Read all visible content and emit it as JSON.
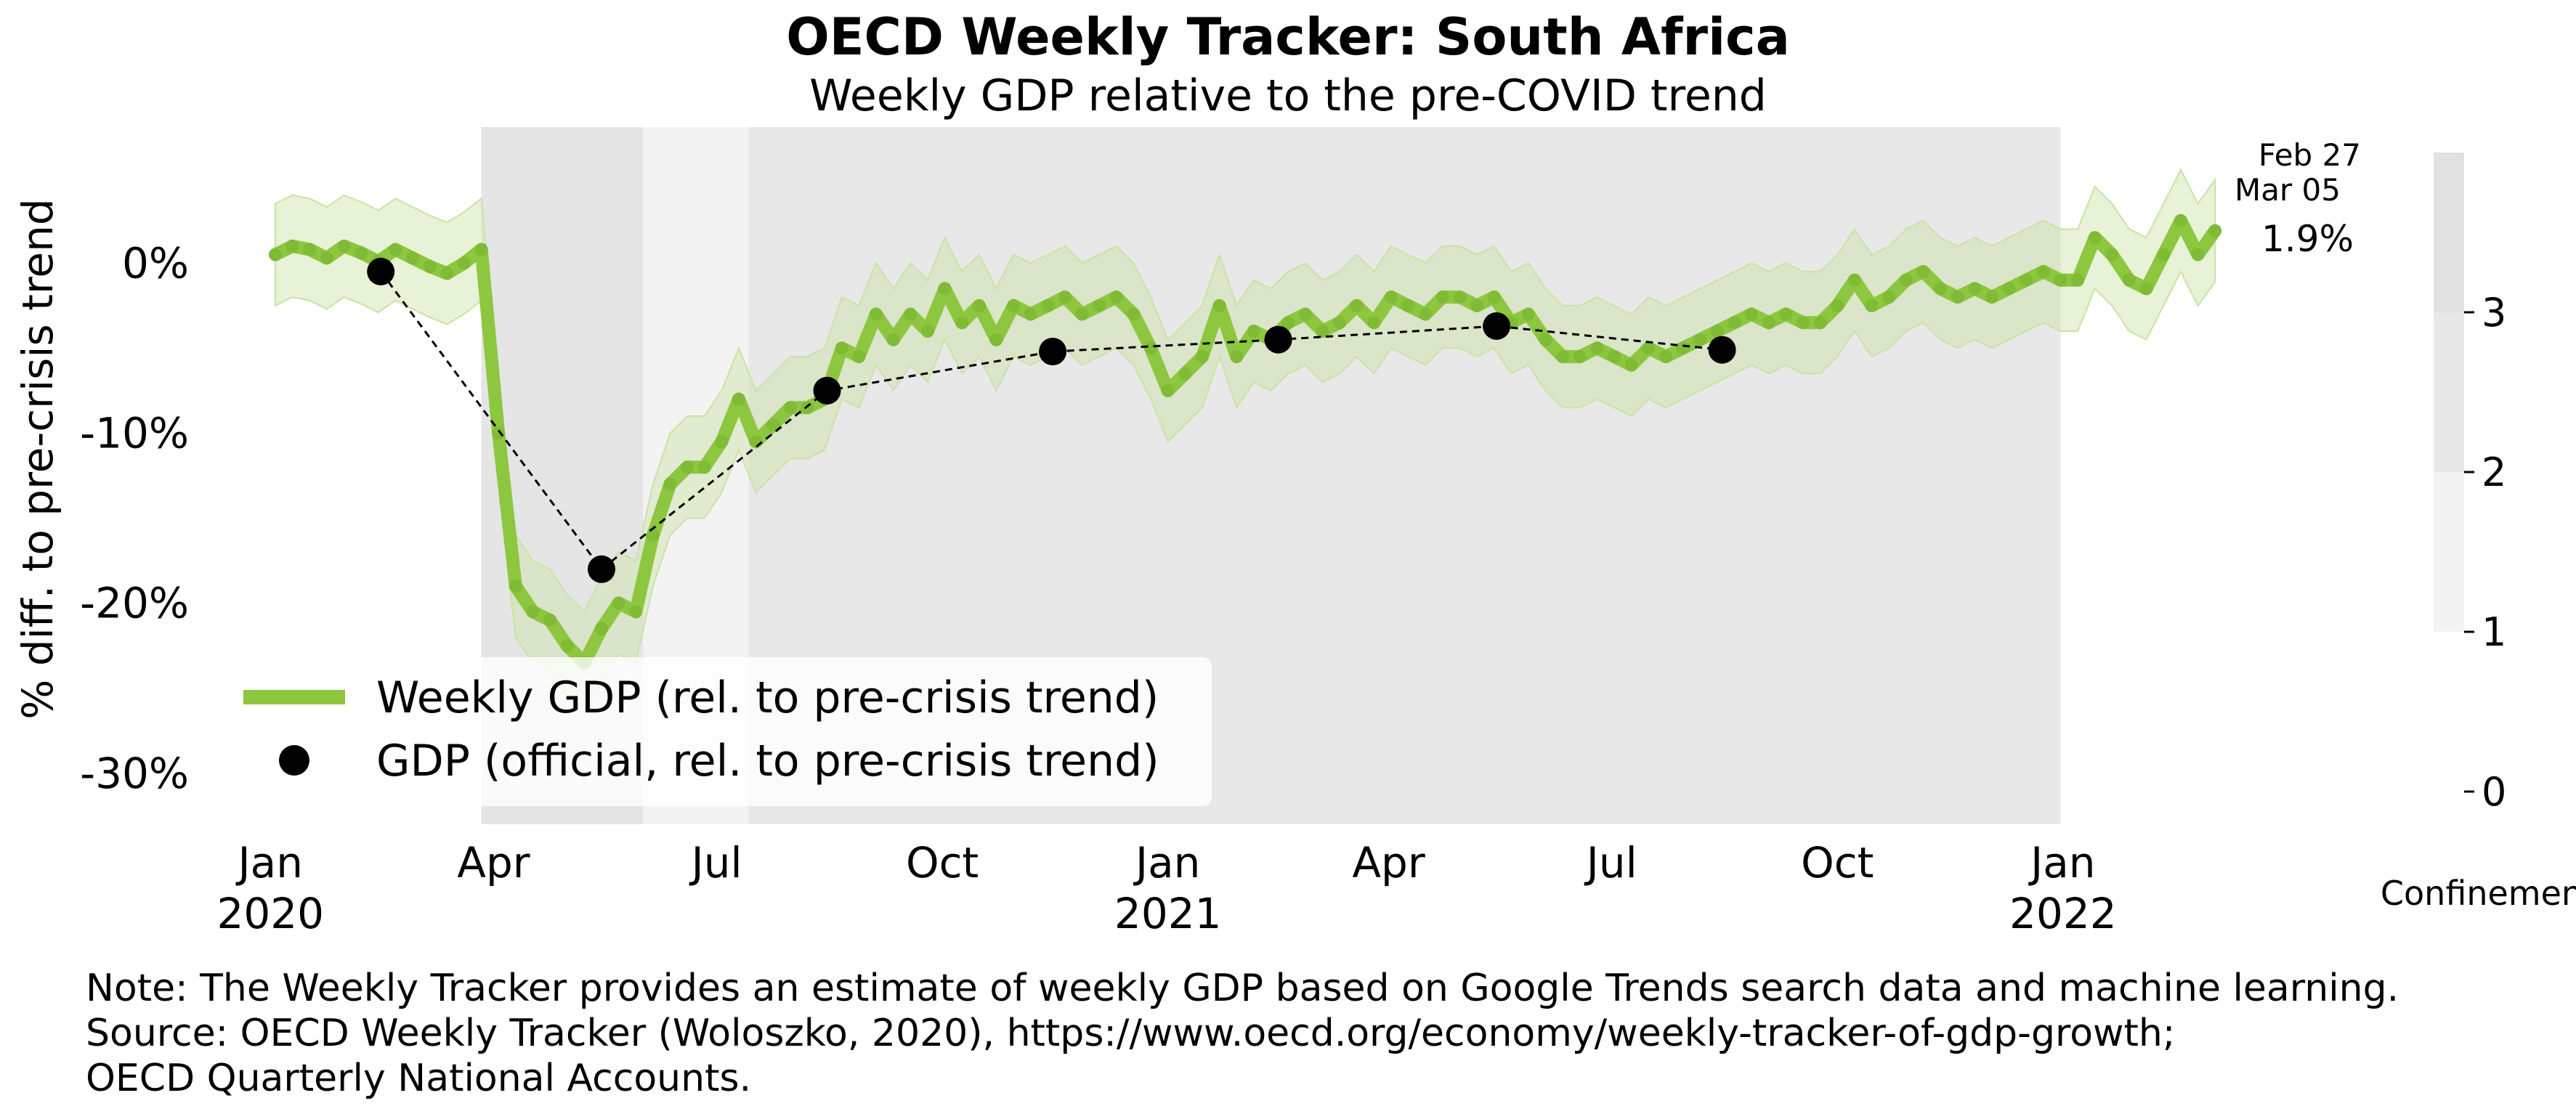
{
  "chart_data": {
    "type": "line",
    "title": "OECD Weekly Tracker: South Africa",
    "subtitle": "Weekly GDP relative to the pre-COVID trend",
    "ylabel": "% diff. to pre-crisis trend",
    "ylim": [
      -33,
      8
    ],
    "yticks": [
      {
        "value": 0,
        "label": "0%"
      },
      {
        "value": -10,
        "label": "-10%"
      },
      {
        "value": -20,
        "label": "-20%"
      },
      {
        "value": -30,
        "label": "-30%"
      }
    ],
    "xticks": [
      {
        "date": "2020-01-01",
        "line1": "Jan",
        "line2": "2020"
      },
      {
        "date": "2020-04-01",
        "line1": "Apr",
        "line2": ""
      },
      {
        "date": "2020-07-01",
        "line1": "Jul",
        "line2": ""
      },
      {
        "date": "2020-10-01",
        "line1": "Oct",
        "line2": ""
      },
      {
        "date": "2021-01-01",
        "line1": "Jan",
        "line2": "2021"
      },
      {
        "date": "2021-04-01",
        "line1": "Apr",
        "line2": ""
      },
      {
        "date": "2021-07-01",
        "line1": "Jul",
        "line2": ""
      },
      {
        "date": "2021-10-01",
        "line1": "Oct",
        "line2": ""
      },
      {
        "date": "2022-01-01",
        "line1": "Jan",
        "line2": "2022"
      }
    ],
    "xlim": [
      "2019-12-18",
      "2022-03-25"
    ],
    "colors": {
      "weekly": "#8dc63f",
      "band": "#c9e3a5",
      "official": "#000000"
    },
    "confinement": {
      "label": "Confinement",
      "ticks": [
        0,
        1,
        2,
        3
      ],
      "periods": [
        {
          "start": "2020-03-27",
          "end": "2020-06-01",
          "level": 3
        },
        {
          "start": "2020-06-01",
          "end": "2020-07-14",
          "level": 1
        },
        {
          "start": "2020-07-14",
          "end": "2021-12-31",
          "level": 2.6
        }
      ]
    },
    "series": [
      {
        "name": "Weekly GDP (rel. to pre-crisis trend)",
        "band_width": 3,
        "points": [
          [
            "2020-01-03",
            0.5
          ],
          [
            "2020-01-10",
            1.0
          ],
          [
            "2020-01-17",
            0.8
          ],
          [
            "2020-01-24",
            0.3
          ],
          [
            "2020-01-31",
            1.0
          ],
          [
            "2020-02-07",
            0.6
          ],
          [
            "2020-02-14",
            0.1
          ],
          [
            "2020-02-21",
            0.8
          ],
          [
            "2020-02-28",
            0.3
          ],
          [
            "2020-03-06",
            -0.2
          ],
          [
            "2020-03-13",
            -0.6
          ],
          [
            "2020-03-20",
            0.0
          ],
          [
            "2020-03-27",
            0.8
          ],
          [
            "2020-04-03",
            -10.0
          ],
          [
            "2020-04-10",
            -19.0
          ],
          [
            "2020-04-17",
            -20.5
          ],
          [
            "2020-04-24",
            -21.0
          ],
          [
            "2020-05-01",
            -22.5
          ],
          [
            "2020-05-08",
            -23.5
          ],
          [
            "2020-05-15",
            -21.5
          ],
          [
            "2020-05-22",
            -20.0
          ],
          [
            "2020-05-29",
            -20.5
          ],
          [
            "2020-06-05",
            -16.0
          ],
          [
            "2020-06-12",
            -13.0
          ],
          [
            "2020-06-19",
            -12.0
          ],
          [
            "2020-06-26",
            -12.0
          ],
          [
            "2020-07-03",
            -10.5
          ],
          [
            "2020-07-10",
            -8.0
          ],
          [
            "2020-07-17",
            -10.5
          ],
          [
            "2020-07-24",
            -9.5
          ],
          [
            "2020-07-31",
            -8.5
          ],
          [
            "2020-08-07",
            -8.5
          ],
          [
            "2020-08-14",
            -8.0
          ],
          [
            "2020-08-21",
            -5.0
          ],
          [
            "2020-08-28",
            -5.5
          ],
          [
            "2020-09-04",
            -3.0
          ],
          [
            "2020-09-11",
            -4.5
          ],
          [
            "2020-09-18",
            -3.0
          ],
          [
            "2020-09-25",
            -4.0
          ],
          [
            "2020-10-02",
            -1.5
          ],
          [
            "2020-10-09",
            -3.5
          ],
          [
            "2020-10-16",
            -2.5
          ],
          [
            "2020-10-23",
            -4.5
          ],
          [
            "2020-10-30",
            -2.5
          ],
          [
            "2020-11-06",
            -3.0
          ],
          [
            "2020-11-13",
            -2.5
          ],
          [
            "2020-11-20",
            -2.0
          ],
          [
            "2020-11-27",
            -3.0
          ],
          [
            "2020-12-04",
            -2.5
          ],
          [
            "2020-12-11",
            -2.0
          ],
          [
            "2020-12-18",
            -3.0
          ],
          [
            "2020-12-25",
            -5.0
          ],
          [
            "2021-01-01",
            -7.5
          ],
          [
            "2021-01-08",
            -6.5
          ],
          [
            "2021-01-15",
            -5.5
          ],
          [
            "2021-01-22",
            -2.5
          ],
          [
            "2021-01-29",
            -5.5
          ],
          [
            "2021-02-05",
            -4.0
          ],
          [
            "2021-02-12",
            -4.5
          ],
          [
            "2021-02-19",
            -3.5
          ],
          [
            "2021-02-26",
            -3.0
          ],
          [
            "2021-03-05",
            -4.0
          ],
          [
            "2021-03-12",
            -3.5
          ],
          [
            "2021-03-19",
            -2.5
          ],
          [
            "2021-03-26",
            -3.5
          ],
          [
            "2021-04-02",
            -2.0
          ],
          [
            "2021-04-09",
            -2.5
          ],
          [
            "2021-04-16",
            -3.0
          ],
          [
            "2021-04-23",
            -2.0
          ],
          [
            "2021-04-30",
            -2.0
          ],
          [
            "2021-05-07",
            -2.5
          ],
          [
            "2021-05-14",
            -2.0
          ],
          [
            "2021-05-21",
            -3.5
          ],
          [
            "2021-05-28",
            -3.0
          ],
          [
            "2021-06-04",
            -4.5
          ],
          [
            "2021-06-11",
            -5.5
          ],
          [
            "2021-06-18",
            -5.5
          ],
          [
            "2021-06-25",
            -5.0
          ],
          [
            "2021-07-02",
            -5.5
          ],
          [
            "2021-07-09",
            -6.0
          ],
          [
            "2021-07-16",
            -5.0
          ],
          [
            "2021-07-23",
            -5.5
          ],
          [
            "2021-07-30",
            -5.0
          ],
          [
            "2021-08-06",
            -4.5
          ],
          [
            "2021-08-13",
            -4.0
          ],
          [
            "2021-08-20",
            -3.5
          ],
          [
            "2021-08-27",
            -3.0
          ],
          [
            "2021-09-03",
            -3.5
          ],
          [
            "2021-09-10",
            -3.0
          ],
          [
            "2021-09-17",
            -3.5
          ],
          [
            "2021-09-24",
            -3.5
          ],
          [
            "2021-10-01",
            -2.5
          ],
          [
            "2021-10-08",
            -1.0
          ],
          [
            "2021-10-15",
            -2.5
          ],
          [
            "2021-10-22",
            -2.0
          ],
          [
            "2021-10-29",
            -1.0
          ],
          [
            "2021-11-05",
            -0.5
          ],
          [
            "2021-11-12",
            -1.5
          ],
          [
            "2021-11-19",
            -2.0
          ],
          [
            "2021-11-26",
            -1.5
          ],
          [
            "2021-12-03",
            -2.0
          ],
          [
            "2021-12-10",
            -1.5
          ],
          [
            "2021-12-17",
            -1.0
          ],
          [
            "2021-12-24",
            -0.5
          ],
          [
            "2021-12-31",
            -1.0
          ],
          [
            "2022-01-07",
            -1.0
          ],
          [
            "2022-01-14",
            1.5
          ],
          [
            "2022-01-21",
            0.5
          ],
          [
            "2022-01-28",
            -1.0
          ],
          [
            "2022-02-04",
            -1.5
          ],
          [
            "2022-02-11",
            0.5
          ],
          [
            "2022-02-18",
            2.5
          ],
          [
            "2022-02-25",
            0.5
          ],
          [
            "2022-03-04",
            1.9
          ]
        ]
      },
      {
        "name": "GDP (official, rel. to pre-crisis trend)",
        "points": [
          [
            "2020-02-15",
            -0.5
          ],
          [
            "2020-05-15",
            -18.0
          ],
          [
            "2020-08-15",
            -7.5
          ],
          [
            "2020-11-15",
            -5.2
          ],
          [
            "2021-02-15",
            -4.5
          ],
          [
            "2021-05-15",
            -3.7
          ],
          [
            "2021-08-15",
            -5.1
          ]
        ]
      }
    ],
    "annotation": {
      "line1": "Feb 27",
      "line2": "Mar 05",
      "value": "1.9%"
    },
    "note": [
      "Note: The Weekly Tracker provides an estimate of weekly GDP based on Google Trends search data and machine learning.",
      "Source: OECD Weekly Tracker (Woloszko, 2020), https://www.oecd.org/economy/weekly-tracker-of-gdp-growth;",
      "OECD Quarterly National Accounts."
    ]
  }
}
